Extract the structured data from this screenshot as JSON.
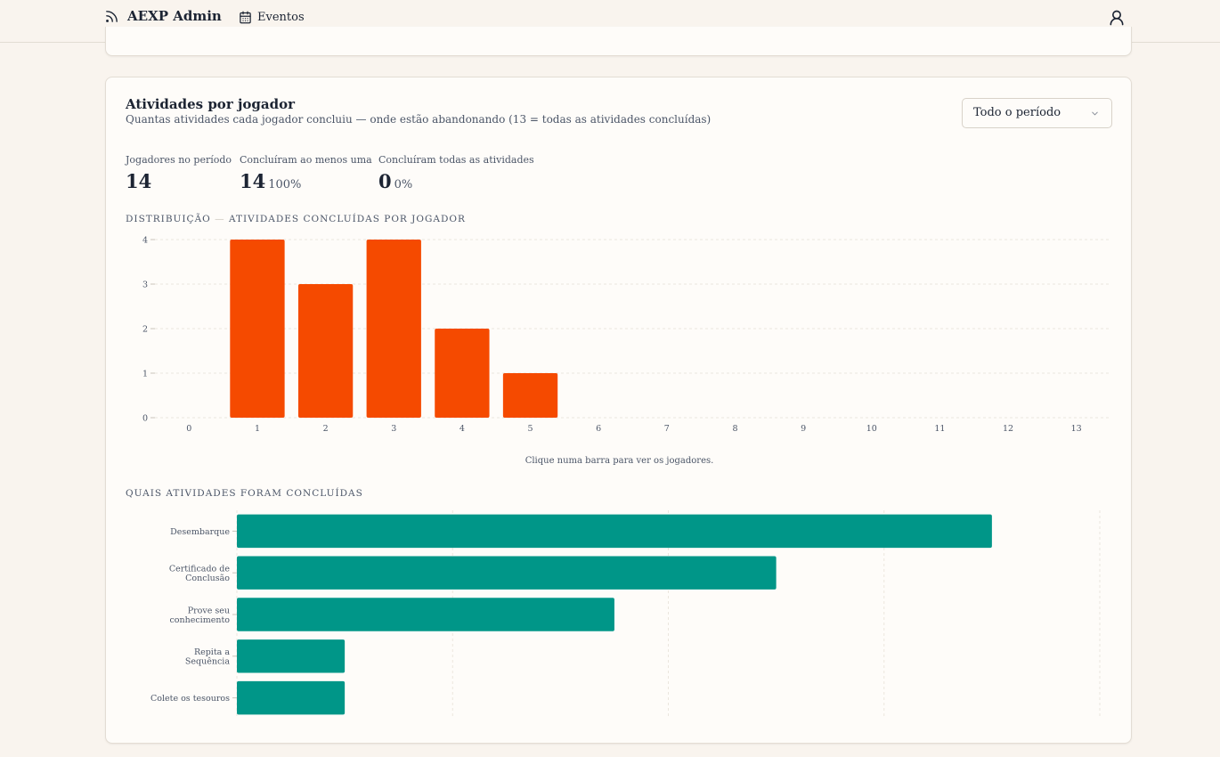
{
  "header": {
    "brand": "AEXP Admin",
    "brand_icon": "rss-icon",
    "nav": [
      {
        "label": "Eventos",
        "icon": "calendar-icon"
      }
    ],
    "user_icon": "user-icon"
  },
  "card": {
    "title": "Atividades por jogador",
    "subtitle": "Quantas atividades cada jogador concluiu — onde estão abandonando (13 = todas as atividades concluídas)",
    "period_select": {
      "value": "Todo o período"
    }
  },
  "stats": [
    {
      "label": "Jogadores no período",
      "value": "14",
      "pct": ""
    },
    {
      "label": "Concluíram ao menos uma",
      "value": "14",
      "pct": "100%"
    },
    {
      "label": "Concluíram todas as atividades",
      "value": "0",
      "pct": "0%"
    }
  ],
  "distribution": {
    "label_a": "DISTRIBUIÇÃO",
    "label_sep": "—",
    "label_b": "ATIVIDADES CONCLUÍDAS POR JOGADOR",
    "hint": "Clique numa barra para ver os jogadores."
  },
  "activities": {
    "label": "QUAIS ATIVIDADES FORAM CONCLUÍDAS"
  },
  "colors": {
    "accent_orange": "#f54a00",
    "accent_teal": "#009688"
  },
  "chart_data": [
    {
      "type": "bar",
      "categories": [
        "0",
        "1",
        "2",
        "3",
        "4",
        "5",
        "6",
        "7",
        "8",
        "9",
        "10",
        "11",
        "12",
        "13"
      ],
      "values": [
        0,
        4,
        3,
        4,
        2,
        1,
        0,
        0,
        0,
        0,
        0,
        0,
        0,
        0
      ],
      "yticks": [
        "0",
        "1",
        "2",
        "3",
        "4"
      ],
      "ylim": [
        0,
        4
      ],
      "grid": true
    },
    {
      "type": "bar",
      "orientation": "horizontal",
      "categories": [
        [
          "Desembarque"
        ],
        [
          "Certificado de",
          "Conclusão"
        ],
        [
          "Prove seu",
          "conhecimento"
        ],
        [
          "Repita a",
          "Sequência"
        ],
        [
          "Colete os tesouros"
        ]
      ],
      "values": [
        14,
        10,
        7,
        2,
        2
      ],
      "xlim": [
        0,
        16
      ],
      "grid": true
    }
  ]
}
